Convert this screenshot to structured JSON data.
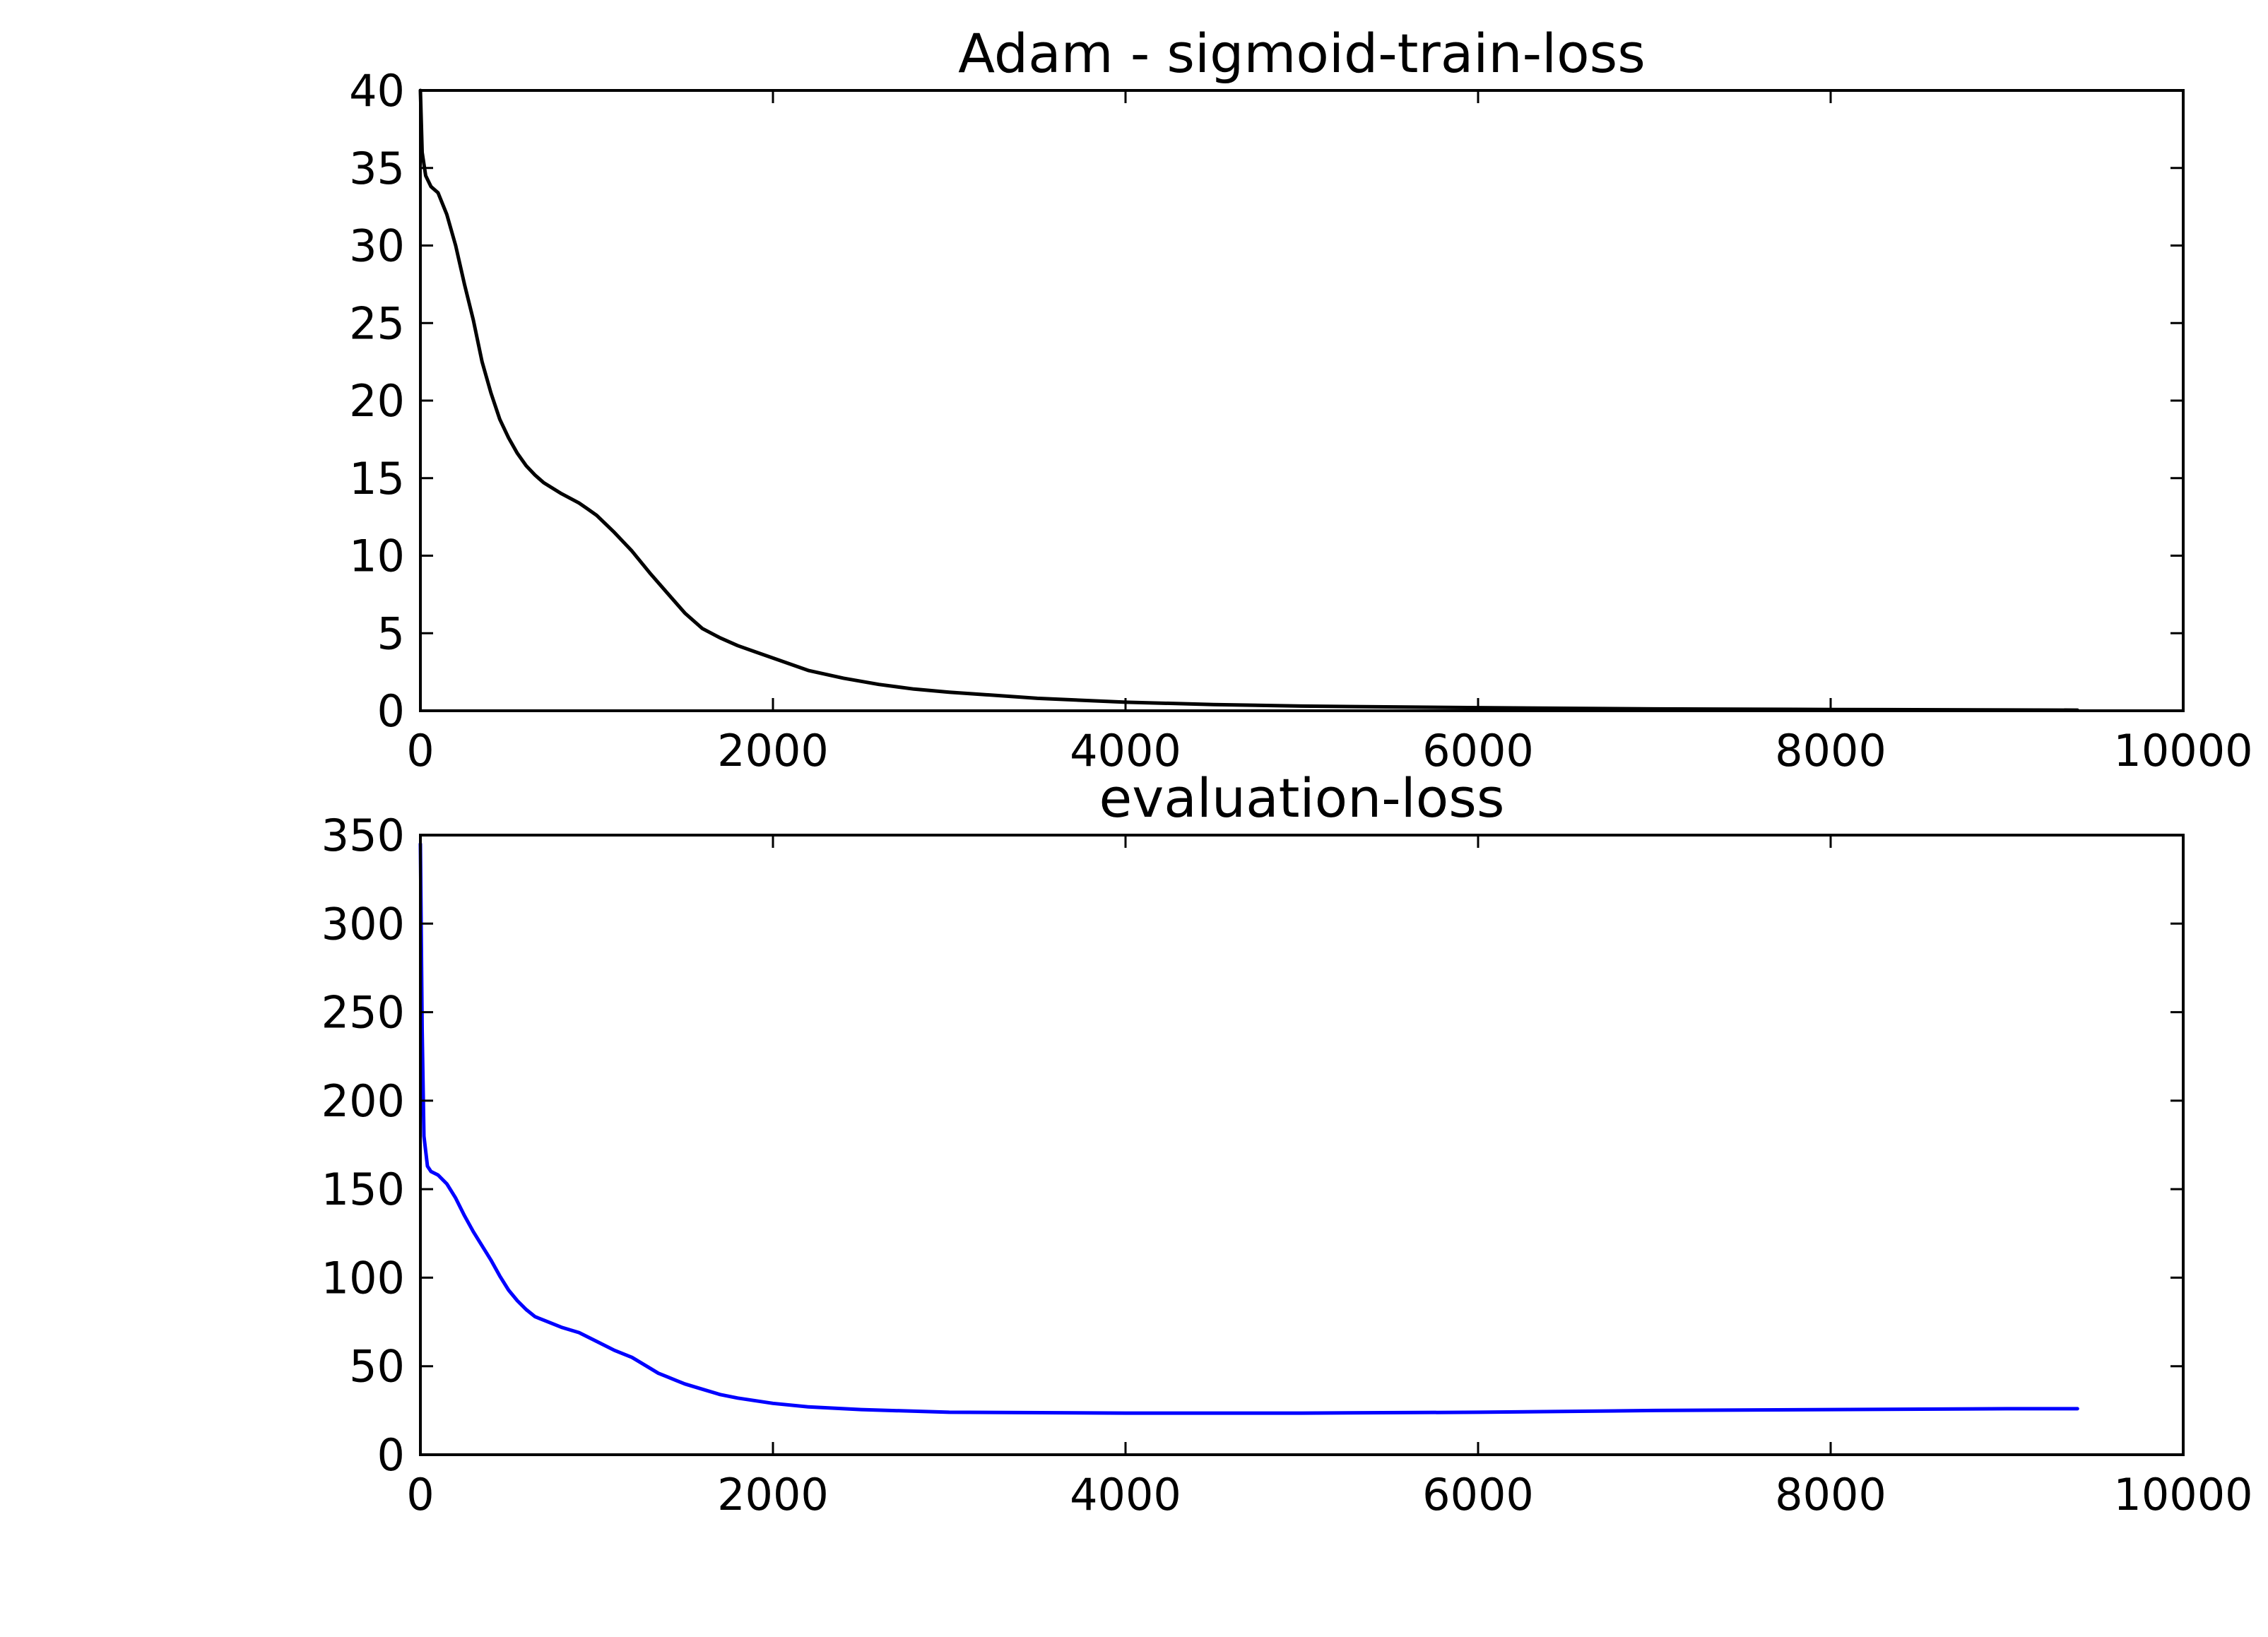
{
  "chart_data": [
    {
      "type": "line",
      "title": "Adam - sigmoid-train-loss",
      "xlabel": "",
      "ylabel": "",
      "xlim": [
        0,
        10000
      ],
      "ylim": [
        0,
        40
      ],
      "xticks": [
        0,
        2000,
        4000,
        6000,
        8000,
        10000
      ],
      "yticks": [
        0,
        5,
        10,
        15,
        20,
        25,
        30,
        35,
        40
      ],
      "xtick_labels": [
        "0",
        "2000",
        "4000",
        "6000",
        "8000",
        "10000"
      ],
      "ytick_labels": [
        "0",
        "5",
        "10",
        "15",
        "20",
        "25",
        "30",
        "35",
        "40"
      ],
      "grid": false,
      "series": [
        {
          "color": "#000000",
          "x": [
            0,
            10,
            30,
            60,
            100,
            150,
            200,
            250,
            300,
            350,
            400,
            450,
            500,
            550,
            600,
            650,
            700,
            800,
            900,
            950,
            1000,
            1100,
            1200,
            1300,
            1400,
            1500,
            1600,
            1700,
            1800,
            1900,
            2000,
            2200,
            2400,
            2600,
            2800,
            3000,
            3500,
            4000,
            4500,
            5000,
            6000,
            7000,
            8000,
            9000,
            9400
          ],
          "y": [
            40,
            36,
            34.5,
            33.8,
            33.4,
            32,
            30,
            27.5,
            25.2,
            22.5,
            20.5,
            18.8,
            17.6,
            16.6,
            15.8,
            15.2,
            14.7,
            14,
            13.4,
            13,
            12.6,
            11.5,
            10.3,
            8.9,
            7.6,
            6.3,
            5.3,
            4.7,
            4.2,
            3.8,
            3.4,
            2.6,
            2.1,
            1.7,
            1.4,
            1.2,
            0.8,
            0.55,
            0.4,
            0.3,
            0.2,
            0.12,
            0.08,
            0.05,
            0.04
          ]
        }
      ]
    },
    {
      "type": "line",
      "title": "evaluation-loss",
      "xlabel": "",
      "ylabel": "",
      "xlim": [
        0,
        10000
      ],
      "ylim": [
        0,
        350
      ],
      "xticks": [
        0,
        2000,
        4000,
        6000,
        8000,
        10000
      ],
      "yticks": [
        0,
        50,
        100,
        150,
        200,
        250,
        300,
        350
      ],
      "xtick_labels": [
        "0",
        "2000",
        "4000",
        "6000",
        "8000",
        "10000"
      ],
      "ytick_labels": [
        "0",
        "50",
        "100",
        "150",
        "200",
        "250",
        "300",
        "350"
      ],
      "grid": false,
      "series": [
        {
          "color": "#0000ff",
          "x": [
            0,
            10,
            20,
            40,
            60,
            100,
            150,
            200,
            250,
            300,
            350,
            400,
            450,
            500,
            550,
            600,
            650,
            700,
            800,
            900,
            1000,
            1100,
            1200,
            1300,
            1350,
            1400,
            1450,
            1500,
            1600,
            1700,
            1800,
            2000,
            2200,
            2500,
            3000,
            4000,
            5000,
            6000,
            7000,
            8000,
            9000,
            9400
          ],
          "y": [
            345,
            240,
            180,
            163,
            160,
            158,
            153,
            145,
            135,
            126,
            118,
            110,
            101,
            93,
            87,
            82,
            78,
            76,
            72,
            69,
            64,
            59,
            55,
            49,
            46,
            44,
            42,
            40,
            37,
            34,
            32,
            29,
            27,
            25.5,
            24,
            23.5,
            23.5,
            24,
            25,
            25.5,
            26,
            26
          ]
        }
      ]
    }
  ]
}
